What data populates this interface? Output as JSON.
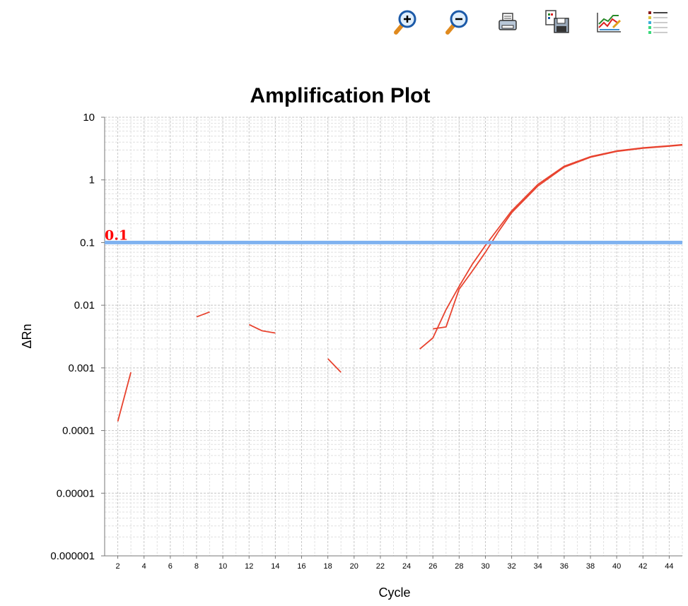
{
  "toolbar": {
    "buttons": [
      {
        "name": "zoom-in-icon",
        "label": "Zoom In"
      },
      {
        "name": "zoom-out-icon",
        "label": "Zoom Out"
      },
      {
        "name": "print-icon",
        "label": "Print"
      },
      {
        "name": "save-icon",
        "label": "Save"
      },
      {
        "name": "line-chart-icon",
        "label": "Plot Settings"
      },
      {
        "name": "legend-icon",
        "label": "Legend"
      }
    ]
  },
  "chart_data": {
    "type": "line",
    "title": "Amplification Plot",
    "xlabel": "Cycle",
    "ylabel": "ΔRn",
    "yscale": "log",
    "ylim": [
      1e-06,
      10
    ],
    "xlim": [
      1,
      45
    ],
    "y_ticks": [
      "10",
      "1",
      "0.1",
      "0.01",
      "0.001",
      "0.0001",
      "0.00001",
      "0.000001"
    ],
    "x_ticks": [
      2,
      4,
      6,
      8,
      10,
      12,
      14,
      16,
      18,
      20,
      22,
      24,
      26,
      28,
      30,
      32,
      34,
      36,
      38,
      40,
      42,
      44
    ],
    "grid": true,
    "threshold": {
      "value": 0.1,
      "label": "0.1",
      "color": "#7fb2f0",
      "label_color": "#ff0000"
    },
    "series_color": "#e8432f",
    "series": [
      {
        "points": [
          [
            2,
            0.00014
          ],
          [
            3,
            0.00085
          ]
        ]
      },
      {
        "points": [
          [
            8,
            0.0065
          ],
          [
            9,
            0.0078
          ]
        ]
      },
      {
        "points": [
          [
            12,
            0.0049
          ],
          [
            13,
            0.0039
          ],
          [
            14,
            0.0036
          ]
        ]
      },
      {
        "points": [
          [
            18,
            0.0014
          ],
          [
            19,
            0.00085
          ]
        ]
      },
      {
        "points": [
          [
            25,
            0.002
          ],
          [
            26,
            0.003
          ],
          [
            27,
            0.0085
          ],
          [
            28,
            0.02
          ],
          [
            29,
            0.045
          ],
          [
            30,
            0.09
          ],
          [
            31,
            0.17
          ],
          [
            32,
            0.32
          ],
          [
            34,
            0.85
          ],
          [
            36,
            1.65
          ],
          [
            38,
            2.35
          ],
          [
            40,
            2.9
          ],
          [
            42,
            3.25
          ],
          [
            44,
            3.5
          ],
          [
            45,
            3.65
          ]
        ]
      },
      {
        "points": [
          [
            26,
            0.0042
          ],
          [
            27,
            0.0045
          ],
          [
            28,
            0.018
          ],
          [
            29,
            0.035
          ],
          [
            30,
            0.07
          ],
          [
            31,
            0.15
          ],
          [
            32,
            0.3
          ],
          [
            34,
            0.8
          ],
          [
            36,
            1.6
          ],
          [
            38,
            2.3
          ],
          [
            40,
            2.85
          ],
          [
            42,
            3.2
          ],
          [
            44,
            3.45
          ],
          [
            45,
            3.6
          ]
        ]
      }
    ]
  }
}
